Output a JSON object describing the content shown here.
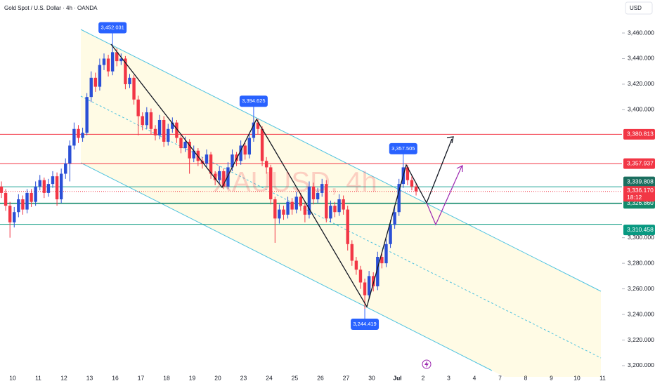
{
  "chart_data": {
    "type": "candlestick",
    "title": "Gold Spot / U.S. Dollar · 4h · OANDA",
    "currency": "USD",
    "watermark": "XAUUSD, 4h",
    "up_color": "#2a4fd6",
    "down_color": "#f23645",
    "categories": [
      "10",
      "11",
      "12",
      "13",
      "16",
      "17",
      "18",
      "19",
      "20",
      "23",
      "24",
      "25",
      "26",
      "27",
      "30",
      "Jul",
      "2",
      "3",
      "4",
      "7",
      "8",
      "9",
      "10",
      "11"
    ],
    "ylim": [
      3191.2,
      3485.8
    ],
    "yticks": [
      {
        "value": 3460,
        "label": "3,460.000"
      },
      {
        "value": 3440,
        "label": "3,440.000"
      },
      {
        "value": 3420,
        "label": "3,420.000"
      },
      {
        "value": 3400,
        "label": "3,400.000"
      },
      {
        "value": 3300,
        "label": "3,300.000"
      },
      {
        "value": 3280,
        "label": "3,280.000"
      },
      {
        "value": 3260,
        "label": "3,260.000"
      },
      {
        "value": 3240,
        "label": "3,240.000"
      },
      {
        "value": 3220,
        "label": "3,220.000"
      },
      {
        "value": 3200,
        "label": "3,200.000"
      }
    ],
    "ohlc": [
      [
        3340,
        3344,
        3331,
        3335
      ],
      [
        3335,
        3338,
        3321,
        3325
      ],
      [
        3325,
        3328,
        3300,
        3312
      ],
      [
        3312,
        3324,
        3308,
        3320
      ],
      [
        3320,
        3334,
        3316,
        3330
      ],
      [
        3330,
        3333,
        3318,
        3322
      ],
      [
        3322,
        3338,
        3319,
        3335
      ],
      [
        3335,
        3338,
        3324,
        3328
      ],
      [
        3328,
        3344,
        3325,
        3340
      ],
      [
        3340,
        3349,
        3337,
        3345
      ],
      [
        3345,
        3347,
        3331,
        3335
      ],
      [
        3335,
        3346,
        3332,
        3342
      ],
      [
        3342,
        3352,
        3339,
        3348
      ],
      [
        3348,
        3351,
        3325,
        3330
      ],
      [
        3330,
        3354,
        3327,
        3350
      ],
      [
        3350,
        3362,
        3346,
        3358
      ],
      [
        3358,
        3376,
        3344,
        3372
      ],
      [
        3372,
        3390,
        3369,
        3385
      ],
      [
        3385,
        3388,
        3374,
        3378
      ],
      [
        3378,
        3386,
        3375,
        3382
      ],
      [
        3382,
        3413,
        3380,
        3410
      ],
      [
        3410,
        3430,
        3406,
        3425
      ],
      [
        3425,
        3429,
        3414,
        3418
      ],
      [
        3418,
        3440,
        3415,
        3435
      ],
      [
        3435,
        3444,
        3431,
        3440
      ],
      [
        3440,
        3443,
        3426,
        3430
      ],
      [
        3430,
        3452.031,
        3427,
        3445
      ],
      [
        3445,
        3448,
        3434,
        3438
      ],
      [
        3438,
        3444,
        3435,
        3440
      ],
      [
        3440,
        3442,
        3416,
        3420
      ],
      [
        3420,
        3428,
        3417,
        3425
      ],
      [
        3425,
        3427,
        3404,
        3408
      ],
      [
        3408,
        3411,
        3380,
        3395
      ],
      [
        3395,
        3398,
        3384,
        3388
      ],
      [
        3388,
        3402,
        3385,
        3398
      ],
      [
        3398,
        3401,
        3381,
        3385
      ],
      [
        3385,
        3388,
        3376,
        3380
      ],
      [
        3380,
        3396,
        3377,
        3392
      ],
      [
        3392,
        3395,
        3371,
        3375
      ],
      [
        3375,
        3389,
        3372,
        3385
      ],
      [
        3385,
        3394,
        3382,
        3390
      ],
      [
        3390,
        3392,
        3374,
        3378
      ],
      [
        3378,
        3381,
        3366,
        3370
      ],
      [
        3370,
        3379,
        3367,
        3375
      ],
      [
        3375,
        3377,
        3350,
        3362
      ],
      [
        3362,
        3372,
        3359,
        3368
      ],
      [
        3368,
        3370,
        3356,
        3360
      ],
      [
        3360,
        3363,
        3354,
        3358
      ],
      [
        3358,
        3369,
        3355,
        3365
      ],
      [
        3365,
        3367,
        3346,
        3350
      ],
      [
        3350,
        3352,
        3341,
        3345
      ],
      [
        3345,
        3356,
        3342,
        3352
      ],
      [
        3352,
        3354,
        3338,
        3340
      ],
      [
        3340,
        3359,
        3338,
        3355
      ],
      [
        3355,
        3369,
        3352,
        3365
      ],
      [
        3365,
        3367,
        3356,
        3360
      ],
      [
        3360,
        3376,
        3357,
        3372
      ],
      [
        3372,
        3374,
        3361,
        3365
      ],
      [
        3365,
        3382,
        3362,
        3378
      ],
      [
        3378,
        3394.625,
        3375,
        3390
      ],
      [
        3390,
        3393,
        3381,
        3385
      ],
      [
        3385,
        3387,
        3356,
        3360
      ],
      [
        3360,
        3363,
        3350,
        3355
      ],
      [
        3355,
        3357,
        3326,
        3330
      ],
      [
        3330,
        3332,
        3296,
        3315
      ],
      [
        3315,
        3326,
        3311,
        3322
      ],
      [
        3322,
        3325,
        3314,
        3318
      ],
      [
        3318,
        3332,
        3315,
        3328
      ],
      [
        3328,
        3331,
        3318,
        3322
      ],
      [
        3322,
        3336,
        3319,
        3332
      ],
      [
        3332,
        3335,
        3321,
        3325
      ],
      [
        3325,
        3328,
        3312,
        3318
      ],
      [
        3318,
        3344,
        3315,
        3340
      ],
      [
        3340,
        3343,
        3326,
        3330
      ],
      [
        3330,
        3339,
        3327,
        3335
      ],
      [
        3335,
        3346,
        3332,
        3342
      ],
      [
        3342,
        3345,
        3312,
        3315
      ],
      [
        3315,
        3329,
        3312,
        3325
      ],
      [
        3325,
        3328,
        3316,
        3320
      ],
      [
        3320,
        3334,
        3317,
        3330
      ],
      [
        3330,
        3333,
        3318,
        3322
      ],
      [
        3322,
        3325,
        3290,
        3295
      ],
      [
        3295,
        3298,
        3278,
        3282
      ],
      [
        3282,
        3285,
        3271,
        3275
      ],
      [
        3275,
        3278,
        3260,
        3265
      ],
      [
        3265,
        3268,
        3244.419,
        3255
      ],
      [
        3255,
        3274,
        3252,
        3270
      ],
      [
        3270,
        3273,
        3258,
        3262
      ],
      [
        3262,
        3289,
        3259,
        3285
      ],
      [
        3285,
        3288,
        3276,
        3280
      ],
      [
        3280,
        3299,
        3277,
        3295
      ],
      [
        3295,
        3314,
        3292,
        3310
      ],
      [
        3310,
        3324,
        3307,
        3320
      ],
      [
        3320,
        3346,
        3317,
        3342
      ],
      [
        3342,
        3357.505,
        3339,
        3355
      ],
      [
        3355,
        3357,
        3341,
        3345
      ],
      [
        3345,
        3348,
        3337,
        3340
      ],
      [
        3340,
        3343,
        3333,
        3336.17
      ]
    ],
    "annotations": [
      {
        "value": 3452.031,
        "label": "3,452.031"
      },
      {
        "value": 3394.625,
        "label": "3,394.625"
      },
      {
        "value": 3357.505,
        "label": "3,357.505"
      },
      {
        "value": 3244.419,
        "label": "3,244.419"
      }
    ],
    "levels": [
      {
        "value": 3380.813,
        "label": "3,380.813",
        "color": "#f23645",
        "badge_color": "#f23645"
      },
      {
        "value": 3357.937,
        "label": "3,357.937",
        "color": "#f23645",
        "badge_color": "#f23645"
      },
      {
        "value": 3339.808,
        "label": "3,339.808",
        "color": "#26a69a",
        "badge_color": "#1b6e5f"
      },
      {
        "value": 3326.86,
        "label": "3,326.860",
        "color": "#138a6c",
        "badge_color": "#138a6c"
      },
      {
        "value": 3310.458,
        "label": "3,310.458",
        "color": "#089981",
        "badge_color": "#089981"
      }
    ],
    "last_price_label": "3,336.170",
    "countdown": "18:12"
  }
}
